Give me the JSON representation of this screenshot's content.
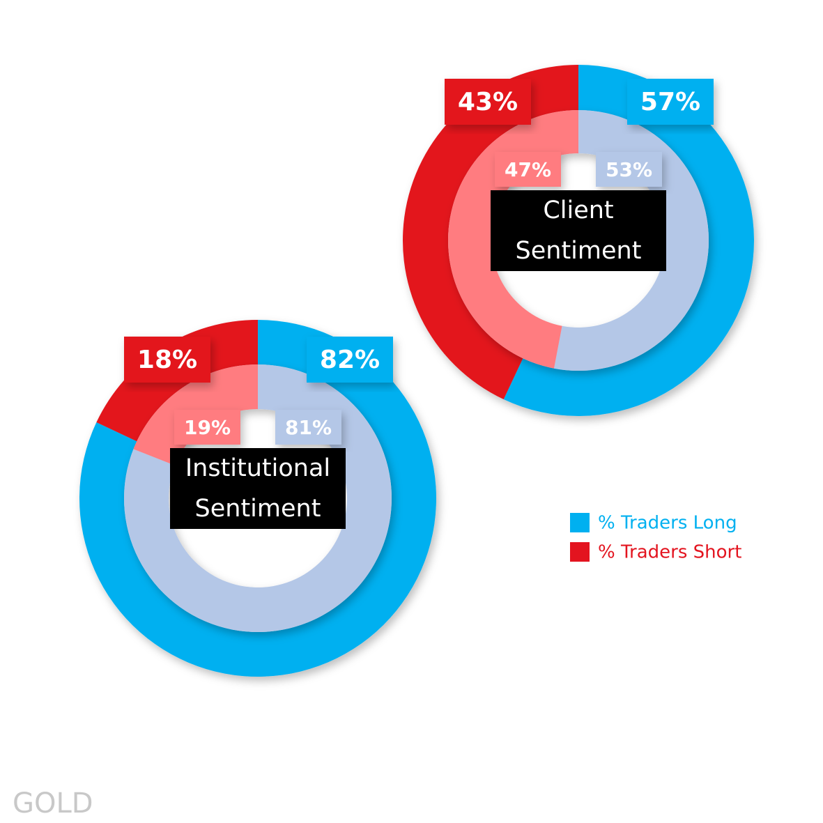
{
  "chart_data": [
    {
      "type": "donut",
      "title": "Client Sentiment",
      "rings": [
        {
          "values": [
            57,
            43
          ],
          "value_labels": [
            "57%",
            "43%"
          ],
          "colors": [
            "#00b0f0",
            "#e3141f"
          ]
        },
        {
          "values": [
            53,
            47
          ],
          "value_labels": [
            "53%",
            "47%"
          ],
          "colors": [
            "#b4c7e7",
            "#ff7c80"
          ]
        }
      ]
    },
    {
      "type": "donut",
      "title": "Institutional Sentiment",
      "rings": [
        {
          "values": [
            82,
            18
          ],
          "value_labels": [
            "82%",
            "18%"
          ],
          "colors": [
            "#00b0f0",
            "#e3141f"
          ]
        },
        {
          "values": [
            81,
            19
          ],
          "value_labels": [
            "81%",
            "19%"
          ],
          "colors": [
            "#b4c7e7",
            "#ff7c80"
          ]
        }
      ]
    }
  ],
  "legend": {
    "items": [
      {
        "name": "% Traders Long",
        "color": "#00b0f0"
      },
      {
        "name": "% Traders Short",
        "color": "#e3141f"
      }
    ]
  },
  "label": "GOLD"
}
